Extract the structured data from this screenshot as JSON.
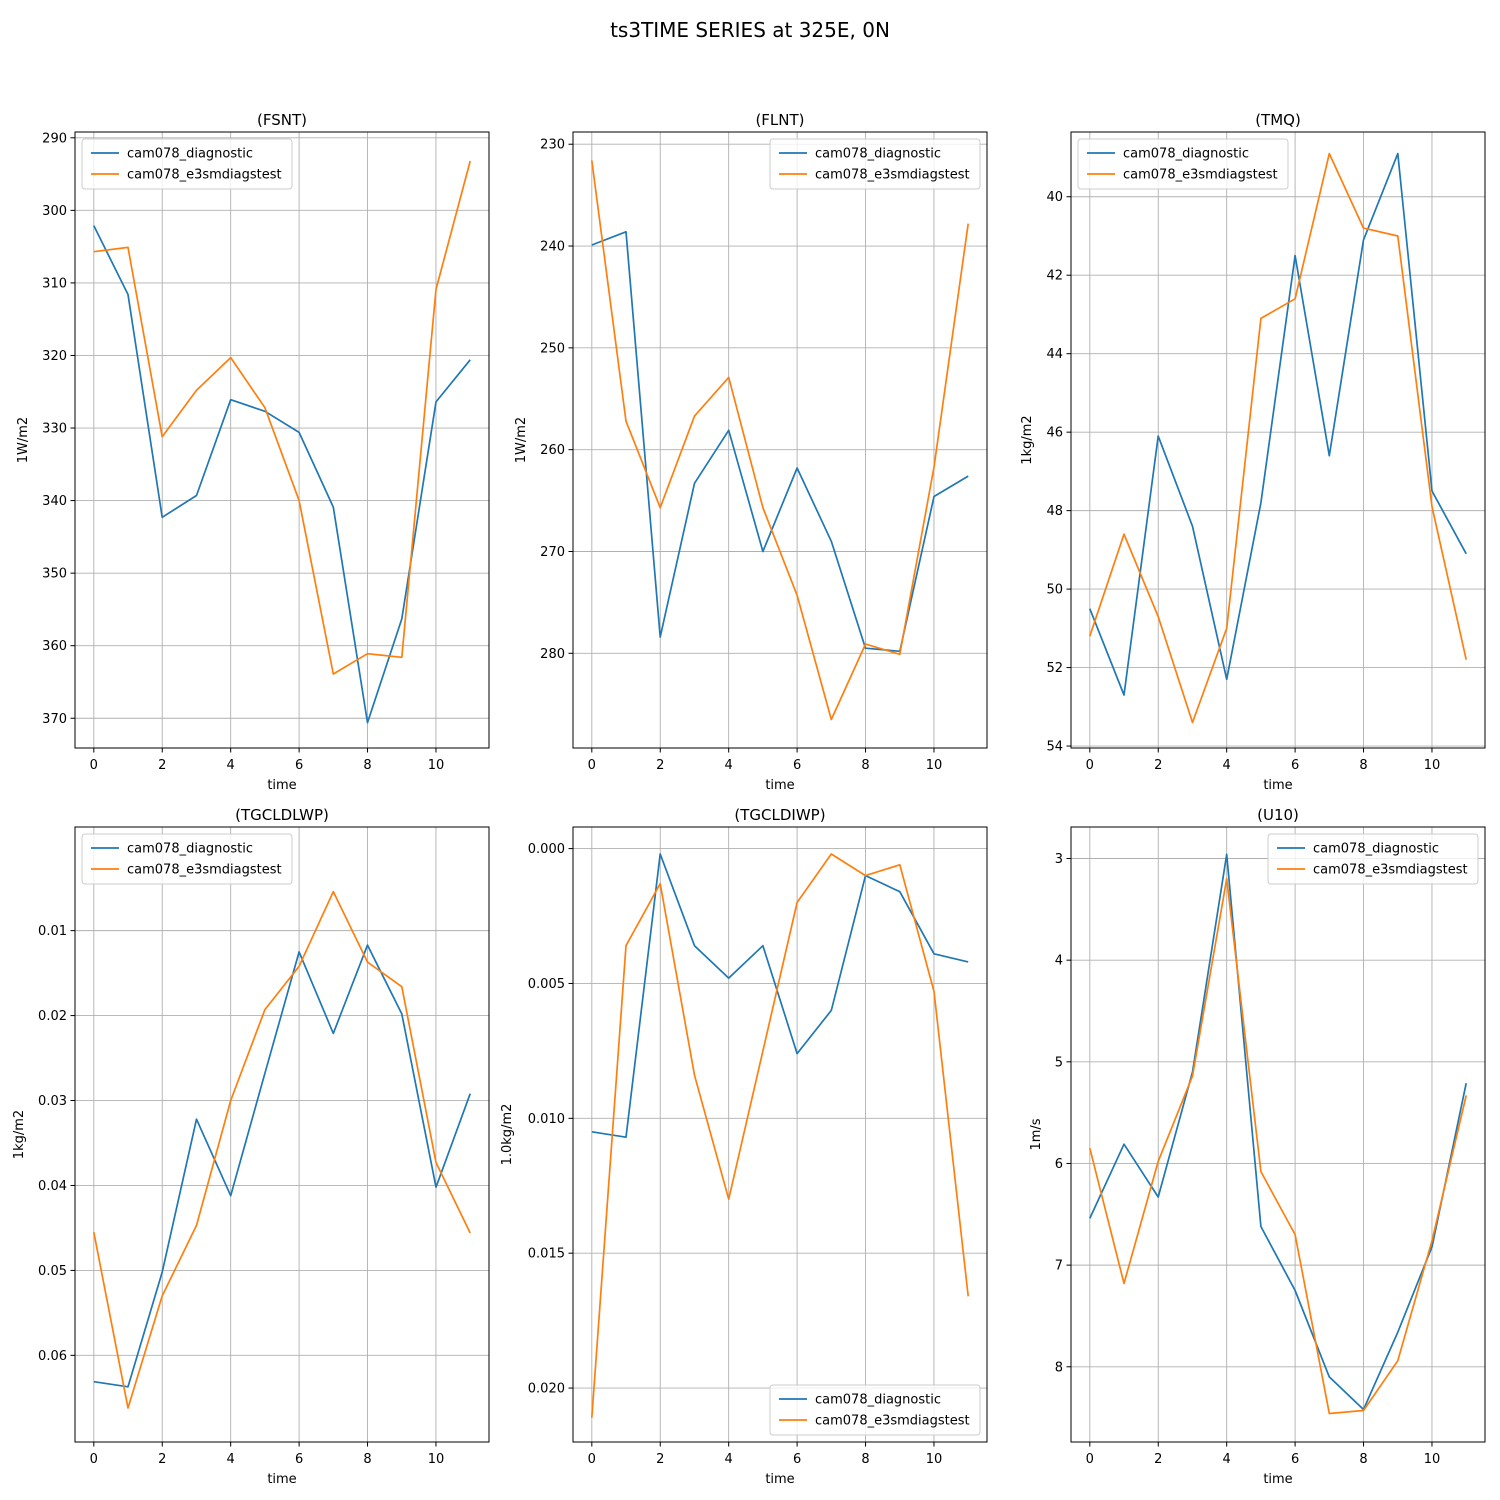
{
  "suptitle": "ts3TIME SERIES at 325E, 0N",
  "colors": {
    "series_0": "#1f77b4",
    "series_1": "#ff7f0e",
    "grid": "#b0b0b0",
    "frame": "#000000"
  },
  "chart_data": [
    {
      "type": "line",
      "title": "(FSNT)",
      "xlabel": "time",
      "ylabel": "1W/m2",
      "inverted_y": true,
      "grid": true,
      "legend_placement": "top-left",
      "xlim": [
        -0.55,
        11.55
      ],
      "ylim": [
        374.1,
        289.2
      ],
      "xticks": [
        0,
        2,
        4,
        6,
        8,
        10
      ],
      "yticks": [
        290,
        300,
        310,
        320,
        330,
        340,
        350,
        360,
        370
      ],
      "x": [
        0,
        1,
        2,
        3,
        4,
        5,
        6,
        7,
        8,
        9,
        10,
        11
      ],
      "series": [
        {
          "name": "cam078_diagnostic",
          "color": "#1f77b4",
          "values": [
            302.1,
            311.6,
            342.3,
            339.3,
            326.1,
            327.7,
            330.6,
            340.9,
            370.6,
            356.3,
            326.4,
            320.6
          ]
        },
        {
          "name": "cam078_e3smdiagstest",
          "color": "#ff7f0e",
          "values": [
            305.7,
            305.1,
            331.2,
            324.8,
            320.3,
            327.2,
            340.0,
            363.9,
            361.1,
            361.6,
            310.9,
            293.2
          ]
        }
      ]
    },
    {
      "type": "line",
      "title": "(FLNT)",
      "xlabel": "time",
      "ylabel": "1W/m2",
      "inverted_y": true,
      "grid": true,
      "legend_placement": "top-right",
      "xlim": [
        -0.55,
        11.55
      ],
      "ylim": [
        289.3,
        228.8
      ],
      "xticks": [
        0,
        2,
        4,
        6,
        8,
        10
      ],
      "yticks": [
        230,
        240,
        250,
        260,
        270,
        280
      ],
      "x": [
        0,
        1,
        2,
        3,
        4,
        5,
        6,
        7,
        8,
        9,
        10,
        11
      ],
      "series": [
        {
          "name": "cam078_diagnostic",
          "color": "#1f77b4",
          "values": [
            239.9,
            238.6,
            278.4,
            263.3,
            258.1,
            270.0,
            261.8,
            269.0,
            279.5,
            279.8,
            264.6,
            262.6
          ]
        },
        {
          "name": "cam078_e3smdiagstest",
          "color": "#ff7f0e",
          "values": [
            231.6,
            257.2,
            265.7,
            256.7,
            252.9,
            265.7,
            274.3,
            286.5,
            279.1,
            280.1,
            261.7,
            237.8
          ]
        }
      ]
    },
    {
      "type": "line",
      "title": "(TMQ)",
      "xlabel": "time",
      "ylabel": "1kg/m2",
      "inverted_y": true,
      "grid": true,
      "legend_placement": "top-left",
      "xlim": [
        -0.55,
        11.55
      ],
      "ylim": [
        54.05,
        38.35
      ],
      "xticks": [
        0,
        2,
        4,
        6,
        8,
        10
      ],
      "yticks": [
        40,
        42,
        44,
        46,
        48,
        50,
        52,
        54
      ],
      "x": [
        0,
        1,
        2,
        3,
        4,
        5,
        6,
        7,
        8,
        9,
        10,
        11
      ],
      "series": [
        {
          "name": "cam078_diagnostic",
          "color": "#1f77b4",
          "values": [
            50.5,
            52.7,
            46.1,
            48.4,
            52.3,
            47.8,
            41.5,
            46.6,
            41.1,
            38.9,
            47.5,
            49.1
          ]
        },
        {
          "name": "cam078_e3smdiagstest",
          "color": "#ff7f0e",
          "values": [
            51.2,
            48.6,
            50.7,
            53.4,
            51.0,
            43.1,
            42.6,
            38.9,
            40.8,
            41.0,
            47.9,
            51.8
          ]
        }
      ]
    },
    {
      "type": "line",
      "title": "(TGCLDLWP)",
      "xlabel": "time",
      "ylabel": "1kg/m2",
      "inverted_y": true,
      "grid": true,
      "legend_placement": "top-left",
      "xlim": [
        -0.55,
        11.55
      ],
      "ylim": [
        0.0702,
        -0.0022
      ],
      "xticks": [
        0,
        2,
        4,
        6,
        8,
        10
      ],
      "yticks": [
        0.01,
        0.02,
        0.03,
        0.04,
        0.05,
        0.06
      ],
      "ytick_labels": [
        "0.01",
        "0.02",
        "0.03",
        "0.04",
        "0.05",
        "0.06"
      ],
      "x": [
        0,
        1,
        2,
        3,
        4,
        5,
        6,
        7,
        8,
        9,
        10,
        11
      ],
      "series": [
        {
          "name": "cam078_diagnostic",
          "color": "#1f77b4",
          "values": [
            0.0631,
            0.0637,
            0.0502,
            0.0322,
            0.0412,
            0.0268,
            0.0125,
            0.0221,
            0.0117,
            0.0198,
            0.0402,
            0.0292
          ]
        },
        {
          "name": "cam078_e3smdiagstest",
          "color": "#ff7f0e",
          "values": [
            0.0455,
            0.0662,
            0.053,
            0.0447,
            0.03,
            0.0193,
            0.0142,
            0.0054,
            0.0137,
            0.0166,
            0.0373,
            0.0456
          ]
        }
      ]
    },
    {
      "type": "line",
      "title": "(TGCLDIWP)",
      "xlabel": "time",
      "ylabel": "1.0kg/m2",
      "inverted_y": true,
      "grid": true,
      "legend_placement": "bottom-right",
      "xlim": [
        -0.55,
        11.55
      ],
      "ylim": [
        0.022,
        -0.0008
      ],
      "xticks": [
        0,
        2,
        4,
        6,
        8,
        10
      ],
      "yticks": [
        0.0,
        0.005,
        0.01,
        0.015,
        0.02
      ],
      "ytick_labels": [
        "0.000",
        "0.005",
        "0.010",
        "0.015",
        "0.020"
      ],
      "x": [
        0,
        1,
        2,
        3,
        4,
        5,
        6,
        7,
        8,
        9,
        10,
        11
      ],
      "series": [
        {
          "name": "cam078_diagnostic",
          "color": "#1f77b4",
          "values": [
            0.0105,
            0.0107,
            0.0002,
            0.0036,
            0.0048,
            0.0036,
            0.0076,
            0.006,
            0.001,
            0.0016,
            0.0039,
            0.0042
          ]
        },
        {
          "name": "cam078_e3smdiagstest",
          "color": "#ff7f0e",
          "values": [
            0.0211,
            0.0036,
            0.0013,
            0.0084,
            0.013,
            0.0075,
            0.002,
            0.0002,
            0.001,
            0.0006,
            0.0053,
            0.0166
          ]
        }
      ]
    },
    {
      "type": "line",
      "title": "(U10)",
      "xlabel": "time",
      "ylabel": "1m/s",
      "inverted_y": true,
      "grid": true,
      "legend_placement": "top-right",
      "xlim": [
        -0.55,
        11.55
      ],
      "ylim": [
        8.74,
        2.69
      ],
      "xticks": [
        0,
        2,
        4,
        6,
        8,
        10
      ],
      "yticks": [
        3,
        4,
        5,
        6,
        7,
        8
      ],
      "x": [
        0,
        1,
        2,
        3,
        4,
        5,
        6,
        7,
        8,
        9,
        10,
        11
      ],
      "series": [
        {
          "name": "cam078_diagnostic",
          "color": "#1f77b4",
          "values": [
            6.54,
            5.81,
            6.33,
            5.1,
            2.96,
            6.62,
            7.25,
            8.1,
            8.42,
            7.66,
            6.82,
            5.21
          ]
        },
        {
          "name": "cam078_e3smdiagstest",
          "color": "#ff7f0e",
          "values": [
            5.85,
            7.18,
            5.98,
            5.14,
            3.2,
            6.08,
            6.7,
            8.46,
            8.43,
            7.94,
            6.76,
            5.33
          ]
        }
      ]
    }
  ]
}
